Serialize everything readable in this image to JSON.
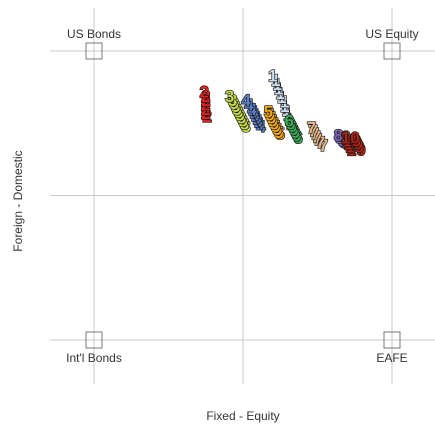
{
  "chart_data": {
    "type": "scatter",
    "xlabel": "Fixed - Equity",
    "ylabel": "Foreign - Domestic",
    "xlim": [
      0,
      1
    ],
    "ylim": [
      0,
      1
    ],
    "grid": true,
    "corners": [
      {
        "label": "US Bonds",
        "x": 0,
        "y": 1
      },
      {
        "label": "US Equity",
        "x": 1,
        "y": 1
      },
      {
        "label": "Int'l Bonds",
        "x": 0,
        "y": 0
      },
      {
        "label": "EAFE",
        "x": 1,
        "y": 0
      }
    ],
    "series": [
      {
        "label": "1",
        "color": "#cfe0f2",
        "points": [
          [
            0.6,
            0.915
          ],
          [
            0.61,
            0.9
          ],
          [
            0.615,
            0.885
          ],
          [
            0.62,
            0.87
          ],
          [
            0.625,
            0.855
          ],
          [
            0.63,
            0.84
          ],
          [
            0.64,
            0.825
          ],
          [
            0.64,
            0.81
          ],
          [
            0.645,
            0.795
          ],
          [
            0.65,
            0.78
          ],
          [
            0.655,
            0.765
          ],
          [
            0.66,
            0.75
          ]
        ]
      },
      {
        "label": "2",
        "color": "#e8201e",
        "points": [
          [
            0.37,
            0.86
          ],
          [
            0.375,
            0.845
          ],
          [
            0.375,
            0.83
          ],
          [
            0.375,
            0.815
          ],
          [
            0.375,
            0.8
          ],
          [
            0.375,
            0.785
          ],
          [
            0.38,
            0.775
          ]
        ]
      },
      {
        "label": "3",
        "color": "#c9dd4f",
        "points": [
          [
            0.455,
            0.845
          ],
          [
            0.465,
            0.83
          ],
          [
            0.47,
            0.82
          ],
          [
            0.475,
            0.81
          ],
          [
            0.48,
            0.8
          ],
          [
            0.485,
            0.79
          ],
          [
            0.49,
            0.78
          ],
          [
            0.495,
            0.77
          ],
          [
            0.5,
            0.76
          ],
          [
            0.505,
            0.75
          ],
          [
            0.51,
            0.74
          ]
        ]
      },
      {
        "label": "4",
        "color": "#5b7fc4",
        "points": [
          [
            0.51,
            0.83
          ],
          [
            0.52,
            0.815
          ],
          [
            0.53,
            0.8
          ],
          [
            0.535,
            0.79
          ],
          [
            0.54,
            0.78
          ],
          [
            0.545,
            0.77
          ],
          [
            0.55,
            0.76
          ],
          [
            0.555,
            0.75
          ],
          [
            0.56,
            0.74
          ]
        ]
      },
      {
        "label": "5",
        "color": "#f2a818",
        "points": [
          [
            0.585,
            0.79
          ],
          [
            0.59,
            0.78
          ],
          [
            0.595,
            0.77
          ],
          [
            0.6,
            0.76
          ],
          [
            0.605,
            0.75
          ],
          [
            0.61,
            0.74
          ],
          [
            0.615,
            0.73
          ],
          [
            0.62,
            0.72
          ],
          [
            0.625,
            0.715
          ]
        ]
      },
      {
        "label": "6",
        "color": "#3fae5a",
        "points": [
          [
            0.655,
            0.76
          ],
          [
            0.66,
            0.75
          ],
          [
            0.665,
            0.74
          ],
          [
            0.67,
            0.73
          ],
          [
            0.675,
            0.72
          ],
          [
            0.68,
            0.71
          ],
          [
            0.685,
            0.7
          ]
        ]
      },
      {
        "label": "7",
        "color": "#e6b98a",
        "points": [
          [
            0.73,
            0.735
          ],
          [
            0.735,
            0.725
          ],
          [
            0.74,
            0.715
          ],
          [
            0.745,
            0.705
          ],
          [
            0.75,
            0.695
          ],
          [
            0.76,
            0.685
          ],
          [
            0.77,
            0.675
          ]
        ]
      },
      {
        "label": "8",
        "color": "#7f68b8",
        "points": [
          [
            0.82,
            0.71
          ],
          [
            0.825,
            0.7
          ],
          [
            0.835,
            0.69
          ],
          [
            0.84,
            0.685
          ],
          [
            0.85,
            0.68
          ]
        ]
      },
      {
        "label": "9",
        "color": "#8b5a2b",
        "points": [
          [
            0.845,
            0.705
          ],
          [
            0.85,
            0.695
          ],
          [
            0.855,
            0.685
          ],
          [
            0.86,
            0.675
          ],
          [
            0.865,
            0.665
          ]
        ]
      },
      {
        "label": "10",
        "color": "#b02418",
        "points": [
          [
            0.86,
            0.7
          ],
          [
            0.865,
            0.69
          ],
          [
            0.87,
            0.68
          ],
          [
            0.875,
            0.67
          ],
          [
            0.88,
            0.66
          ]
        ]
      }
    ]
  }
}
